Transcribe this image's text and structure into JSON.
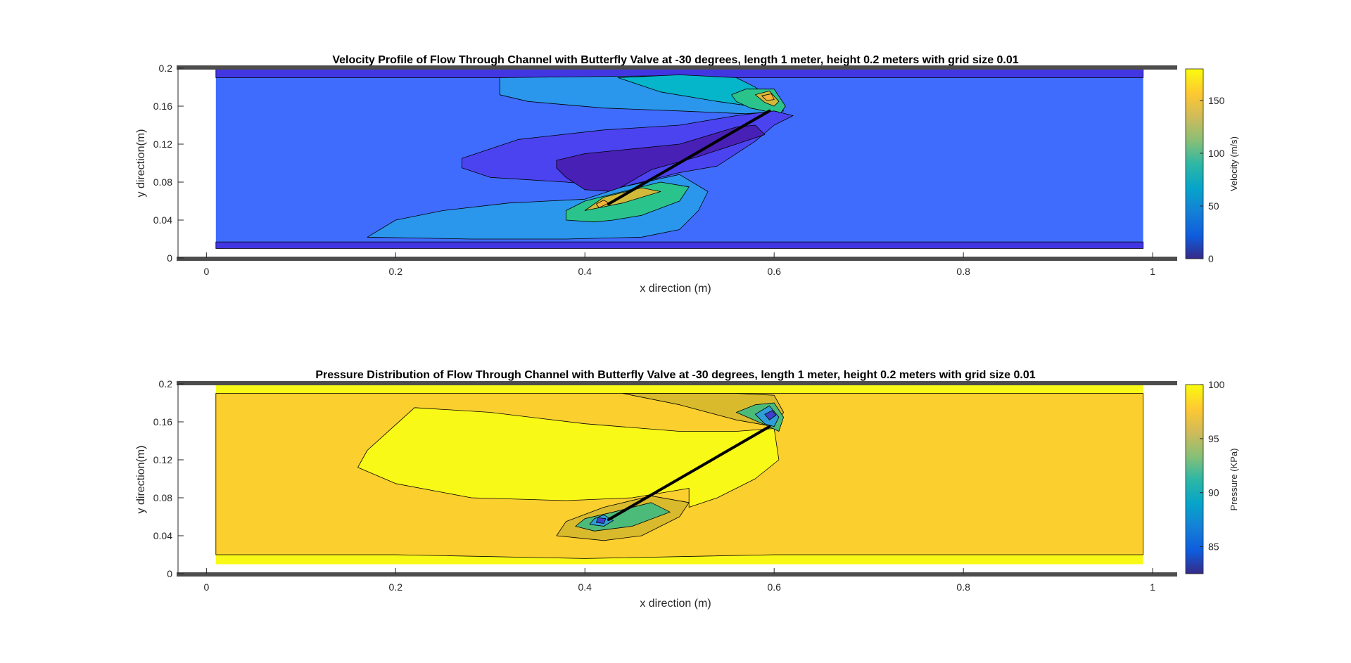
{
  "chart_data": [
    {
      "type": "contour",
      "title": "Velocity Profile of Flow Through Channel with Butterfly Valve at -30 degrees, length 1 meter, height 0.2 meters with grid size 0.01",
      "xlabel": "x direction (m)",
      "ylabel": "y direction(m)",
      "xlim": [
        -0.03,
        1.02
      ],
      "ylim": [
        0,
        0.2
      ],
      "xticks": [
        0,
        0.2,
        0.4,
        0.6,
        0.8,
        1
      ],
      "xtick_labels": [
        "0",
        "0.2",
        "0.4",
        "0.6",
        "0.8",
        "1"
      ],
      "yticks": [
        0,
        0.04,
        0.08,
        0.12,
        0.16,
        0.2
      ],
      "ytick_labels": [
        "0",
        "0.04",
        "0.08",
        "0.12",
        "0.16",
        "0.2"
      ],
      "colorbar": {
        "label": "Velocity (m/s)",
        "range": [
          0,
          180
        ],
        "ticks": [
          0,
          50,
          100,
          150
        ],
        "tick_labels": [
          "0",
          "50",
          "100",
          "150"
        ]
      },
      "background_color": "#3f6cfd",
      "valve_line": [
        [
          0.425,
          0.057
        ],
        [
          0.595,
          0.155
        ]
      ],
      "regions": [
        {
          "color": "#4236e3",
          "points": [
            [
              0.01,
              0.19
            ],
            [
              0.99,
              0.19
            ],
            [
              0.99,
              0.2
            ],
            [
              0.01,
              0.2
            ]
          ]
        },
        {
          "color": "#4236e3",
          "points": [
            [
              0.01,
              0.01
            ],
            [
              0.99,
              0.01
            ],
            [
              0.99,
              0.017
            ],
            [
              0.01,
              0.017
            ]
          ]
        },
        {
          "color": "#2a96ec",
          "points": [
            [
              0.31,
              0.19
            ],
            [
              0.48,
              0.192
            ],
            [
              0.55,
              0.186
            ],
            [
              0.57,
              0.18
            ],
            [
              0.6,
              0.163
            ],
            [
              0.61,
              0.155
            ],
            [
              0.57,
              0.152
            ],
            [
              0.5,
              0.155
            ],
            [
              0.42,
              0.158
            ],
            [
              0.34,
              0.165
            ],
            [
              0.31,
              0.172
            ]
          ]
        },
        {
          "color": "#05b5c9",
          "points": [
            [
              0.435,
              0.19
            ],
            [
              0.5,
              0.193
            ],
            [
              0.56,
              0.19
            ],
            [
              0.58,
              0.18
            ],
            [
              0.6,
              0.165
            ],
            [
              0.59,
              0.158
            ],
            [
              0.54,
              0.165
            ],
            [
              0.48,
              0.175
            ]
          ]
        },
        {
          "color": "#2bc38c",
          "points": [
            [
              0.555,
              0.172
            ],
            [
              0.57,
              0.178
            ],
            [
              0.585,
              0.178
            ],
            [
              0.6,
              0.178
            ],
            [
              0.612,
              0.16
            ],
            [
              0.605,
              0.15
            ],
            [
              0.59,
              0.155
            ],
            [
              0.575,
              0.158
            ],
            [
              0.56,
              0.165
            ]
          ]
        },
        {
          "color": "#d1ba3a",
          "points": [
            [
              0.58,
              0.172
            ],
            [
              0.595,
              0.176
            ],
            [
              0.605,
              0.165
            ],
            [
              0.6,
              0.16
            ],
            [
              0.59,
              0.164
            ]
          ]
        },
        {
          "color": "#f8b23a",
          "points": [
            [
              0.587,
              0.171
            ],
            [
              0.597,
              0.173
            ],
            [
              0.6,
              0.167
            ],
            [
              0.592,
              0.166
            ]
          ]
        },
        {
          "color": "#4b43f0",
          "points": [
            [
              0.27,
              0.105
            ],
            [
              0.33,
              0.125
            ],
            [
              0.42,
              0.135
            ],
            [
              0.5,
              0.14
            ],
            [
              0.56,
              0.15
            ],
            [
              0.6,
              0.155
            ],
            [
              0.62,
              0.15
            ],
            [
              0.6,
              0.14
            ],
            [
              0.58,
              0.123
            ],
            [
              0.54,
              0.097
            ],
            [
              0.5,
              0.09
            ],
            [
              0.44,
              0.075
            ],
            [
              0.38,
              0.08
            ],
            [
              0.3,
              0.085
            ],
            [
              0.27,
              0.095
            ]
          ]
        },
        {
          "color": "#4820b5",
          "points": [
            [
              0.37,
              0.103
            ],
            [
              0.4,
              0.11
            ],
            [
              0.45,
              0.115
            ],
            [
              0.5,
              0.12
            ],
            [
              0.54,
              0.132
            ],
            [
              0.56,
              0.138
            ],
            [
              0.58,
              0.14
            ],
            [
              0.59,
              0.13
            ],
            [
              0.56,
              0.12
            ],
            [
              0.52,
              0.107
            ],
            [
              0.47,
              0.093
            ],
            [
              0.43,
              0.07
            ],
            [
              0.4,
              0.072
            ],
            [
              0.38,
              0.085
            ],
            [
              0.37,
              0.095
            ]
          ]
        },
        {
          "color": "#2a96ec",
          "points": [
            [
              0.17,
              0.022
            ],
            [
              0.28,
              0.02
            ],
            [
              0.38,
              0.02
            ],
            [
              0.46,
              0.022
            ],
            [
              0.5,
              0.03
            ],
            [
              0.52,
              0.05
            ],
            [
              0.53,
              0.07
            ],
            [
              0.5,
              0.088
            ],
            [
              0.44,
              0.075
            ],
            [
              0.4,
              0.062
            ],
            [
              0.32,
              0.058
            ],
            [
              0.25,
              0.05
            ],
            [
              0.2,
              0.04
            ]
          ]
        },
        {
          "color": "#2bc38c",
          "points": [
            [
              0.38,
              0.04
            ],
            [
              0.41,
              0.038
            ],
            [
              0.43,
              0.04
            ],
            [
              0.46,
              0.045
            ],
            [
              0.5,
              0.06
            ],
            [
              0.51,
              0.075
            ],
            [
              0.48,
              0.08
            ],
            [
              0.44,
              0.07
            ],
            [
              0.4,
              0.06
            ],
            [
              0.38,
              0.05
            ]
          ]
        },
        {
          "color": "#d1ba3a",
          "points": [
            [
              0.4,
              0.05
            ],
            [
              0.44,
              0.058
            ],
            [
              0.48,
              0.07
            ],
            [
              0.46,
              0.074
            ],
            [
              0.42,
              0.064
            ]
          ]
        },
        {
          "color": "#f8b23a",
          "points": [
            [
              0.415,
              0.053
            ],
            [
              0.425,
              0.058
            ],
            [
              0.42,
              0.061
            ],
            [
              0.412,
              0.057
            ]
          ]
        }
      ]
    },
    {
      "type": "contour",
      "title": "Pressure Distribution of Flow Through Channel with Butterfly Valve at -30 degrees, length 1 meter, height 0.2 meters with grid size 0.01",
      "xlabel": "x direction (m)",
      "ylabel": "y direction(m)",
      "xlim": [
        -0.03,
        1.02
      ],
      "ylim": [
        0,
        0.2
      ],
      "xticks": [
        0,
        0.2,
        0.4,
        0.6,
        0.8,
        1
      ],
      "xtick_labels": [
        "0",
        "0.2",
        "0.4",
        "0.6",
        "0.8",
        "1"
      ],
      "yticks": [
        0,
        0.04,
        0.08,
        0.12,
        0.16,
        0.2
      ],
      "ytick_labels": [
        "0",
        "0.04",
        "0.08",
        "0.12",
        "0.16",
        "0.2"
      ],
      "colorbar": {
        "label": "Pressure (KPa)",
        "range": [
          82.5,
          100
        ],
        "ticks": [
          85,
          90,
          95,
          100
        ],
        "tick_labels": [
          "85",
          "90",
          "95",
          "100"
        ]
      },
      "background_color": "#f9f917",
      "valve_line": [
        [
          0.425,
          0.057
        ],
        [
          0.595,
          0.155
        ]
      ],
      "regions": [
        {
          "color": "#fbcf2e",
          "points": [
            [
              0.01,
              0.19
            ],
            [
              0.3,
              0.19
            ],
            [
              0.55,
              0.19
            ],
            [
              0.99,
              0.19
            ],
            [
              0.99,
              0.02
            ],
            [
              0.6,
              0.02
            ],
            [
              0.4,
              0.016
            ],
            [
              0.2,
              0.02
            ],
            [
              0.01,
              0.02
            ]
          ]
        },
        {
          "color": "#f9f917",
          "points": [
            [
              0.17,
              0.13
            ],
            [
              0.22,
              0.175
            ],
            [
              0.3,
              0.17
            ],
            [
              0.4,
              0.158
            ],
            [
              0.5,
              0.15
            ],
            [
              0.56,
              0.15
            ],
            [
              0.6,
              0.153
            ],
            [
              0.605,
              0.12
            ],
            [
              0.58,
              0.1
            ],
            [
              0.54,
              0.08
            ],
            [
              0.51,
              0.07
            ],
            [
              0.51,
              0.09
            ],
            [
              0.45,
              0.08
            ],
            [
              0.38,
              0.077
            ],
            [
              0.28,
              0.08
            ],
            [
              0.2,
              0.095
            ],
            [
              0.16,
              0.112
            ]
          ]
        },
        {
          "color": "#d9ba2c",
          "points": [
            [
              0.44,
              0.19
            ],
            [
              0.5,
              0.19
            ],
            [
              0.56,
              0.19
            ],
            [
              0.6,
              0.188
            ],
            [
              0.61,
              0.17
            ],
            [
              0.6,
              0.155
            ],
            [
              0.56,
              0.162
            ],
            [
              0.5,
              0.178
            ]
          ]
        },
        {
          "color": "#4cbb7a",
          "points": [
            [
              0.56,
              0.17
            ],
            [
              0.58,
              0.178
            ],
            [
              0.6,
              0.18
            ],
            [
              0.61,
              0.165
            ],
            [
              0.605,
              0.15
            ],
            [
              0.59,
              0.157
            ]
          ]
        },
        {
          "color": "#2f9ed8",
          "points": [
            [
              0.58,
              0.168
            ],
            [
              0.595,
              0.177
            ],
            [
              0.605,
              0.165
            ],
            [
              0.6,
              0.155
            ],
            [
              0.59,
              0.158
            ]
          ]
        },
        {
          "color": "#3f40c9",
          "points": [
            [
              0.59,
              0.168
            ],
            [
              0.598,
              0.172
            ],
            [
              0.602,
              0.167
            ],
            [
              0.595,
              0.162
            ]
          ]
        },
        {
          "color": "#d9ba2c",
          "points": [
            [
              0.37,
              0.04
            ],
            [
              0.42,
              0.035
            ],
            [
              0.46,
              0.04
            ],
            [
              0.5,
              0.06
            ],
            [
              0.51,
              0.075
            ],
            [
              0.47,
              0.082
            ],
            [
              0.42,
              0.07
            ],
            [
              0.38,
              0.055
            ]
          ]
        },
        {
          "color": "#4cbb7a",
          "points": [
            [
              0.39,
              0.05
            ],
            [
              0.41,
              0.045
            ],
            [
              0.45,
              0.05
            ],
            [
              0.49,
              0.065
            ],
            [
              0.47,
              0.075
            ],
            [
              0.43,
              0.065
            ],
            [
              0.4,
              0.058
            ]
          ]
        },
        {
          "color": "#2f9ed8",
          "points": [
            [
              0.405,
              0.052
            ],
            [
              0.42,
              0.05
            ],
            [
              0.43,
              0.056
            ],
            [
              0.42,
              0.062
            ],
            [
              0.41,
              0.058
            ]
          ]
        },
        {
          "color": "#3f40c9",
          "points": [
            [
              0.412,
              0.054
            ],
            [
              0.42,
              0.053
            ],
            [
              0.422,
              0.058
            ],
            [
              0.414,
              0.059
            ]
          ]
        }
      ]
    }
  ]
}
